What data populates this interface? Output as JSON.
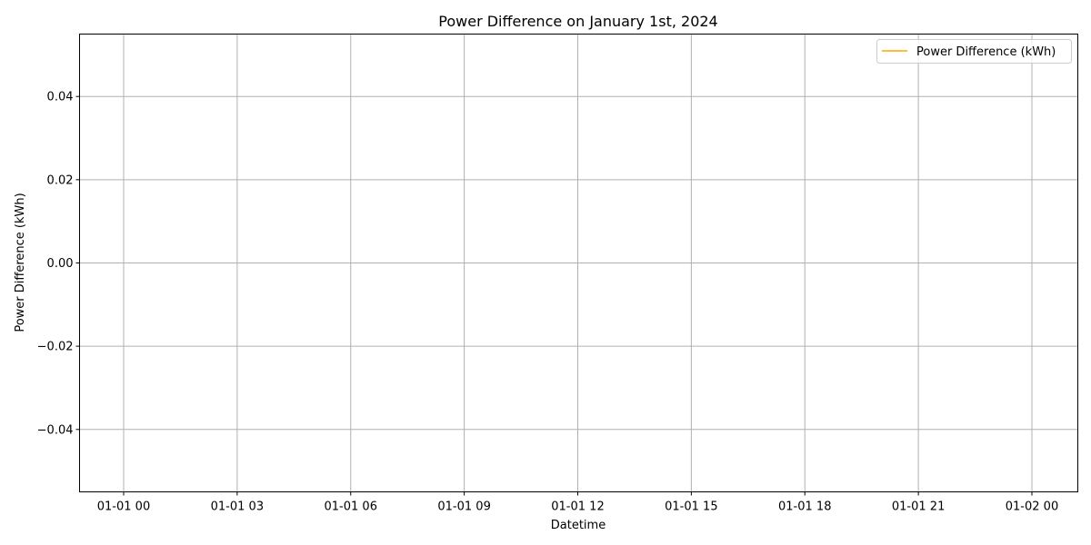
{
  "chart_data": {
    "type": "line",
    "title": "Power Difference on January 1st, 2024",
    "xlabel": "Datetime",
    "ylabel": "Power Difference (kWh)",
    "x_ticks": [
      "01-01 00",
      "01-01 03",
      "01-01 06",
      "01-01 09",
      "01-01 12",
      "01-01 15",
      "01-01 18",
      "01-01 21",
      "01-02 00"
    ],
    "y_ticks": [
      "−0.04",
      "−0.02",
      "0.00",
      "0.02",
      "0.04"
    ],
    "y_tick_values": [
      -0.04,
      -0.02,
      0.0,
      0.02,
      0.04
    ],
    "xlim": [
      "2024-01-01T00:00",
      "2024-01-02T00:00"
    ],
    "ylim": [
      -0.055,
      0.055
    ],
    "grid": true,
    "legend_position": "top-right",
    "series": [
      {
        "name": "Power Difference (kWh)",
        "color": "#ffa500",
        "x": [],
        "y": []
      }
    ]
  }
}
